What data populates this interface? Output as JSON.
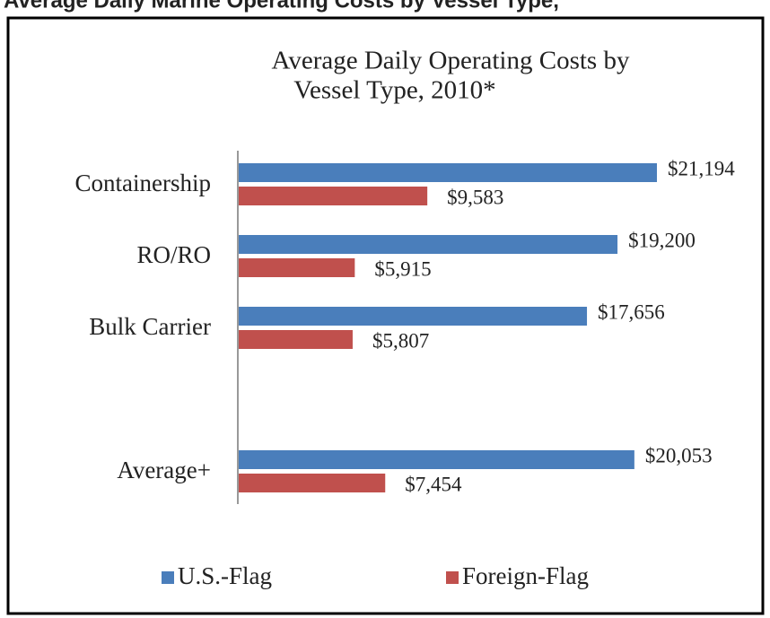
{
  "caption": "Average Daily Marine Operating Costs by Vessel Type,",
  "chart_data": {
    "type": "hbar",
    "title": [
      "Average Daily Operating Costs by",
      "Vessel Type, 2010*"
    ],
    "categories": [
      "Containership",
      "RO/RO",
      "Bulk Carrier",
      null,
      "Average+"
    ],
    "series": [
      {
        "name": "U.S.-Flag",
        "color": "#4a7ebb",
        "values": [
          21194,
          19200,
          17656,
          null,
          20053
        ],
        "value_labels": [
          "$21,194",
          "$19,200",
          "$17,656",
          null,
          "$20,053"
        ]
      },
      {
        "name": "Foreign-Flag",
        "color": "#c0504d",
        "values": [
          9583,
          5915,
          5807,
          null,
          7454
        ],
        "value_labels": [
          "$9,583",
          "$5,915",
          "$5,807",
          null,
          "$7,454"
        ]
      }
    ]
  }
}
